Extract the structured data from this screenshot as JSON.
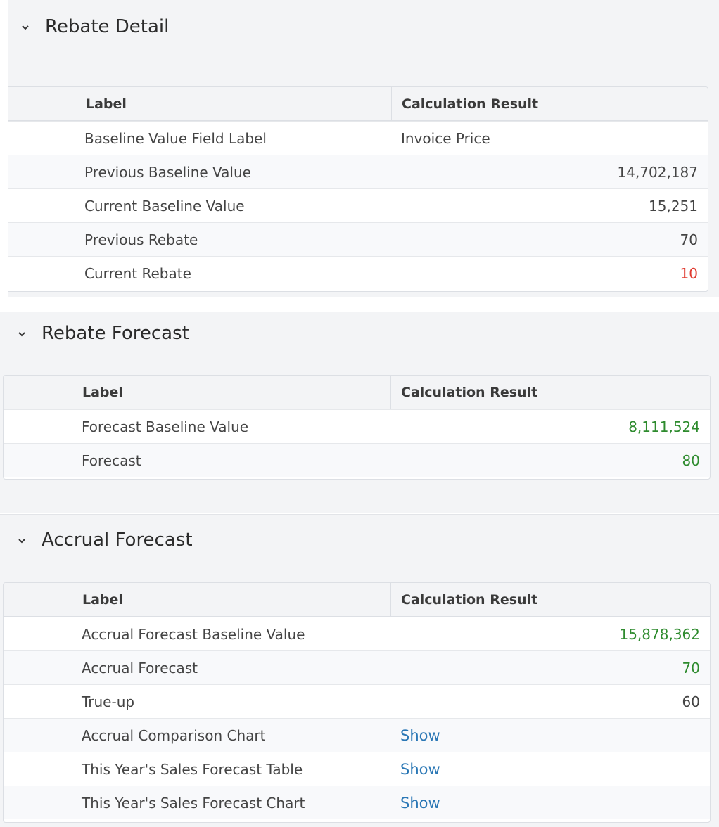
{
  "colors": {
    "green": "#2e8b2e",
    "red": "#e03a2f",
    "link": "#2a77b5"
  },
  "sections": [
    {
      "title": "Rebate Detail",
      "icon": "chevron-down-icon",
      "columns": [
        "Label",
        "Calculation Result"
      ],
      "rows": [
        {
          "label": "Baseline Value Field Label",
          "value": "Invoice Price"
        },
        {
          "label": "Previous Baseline Value",
          "value": "14,702,187"
        },
        {
          "label": "Current Baseline Value",
          "value": "15,251"
        },
        {
          "label": "Previous Rebate",
          "value": "70"
        },
        {
          "label": "Current Rebate",
          "value": "10"
        }
      ]
    },
    {
      "title": "Rebate Forecast",
      "icon": "chevron-down-icon",
      "columns": [
        "Label",
        "Calculation Result"
      ],
      "rows": [
        {
          "label": "Forecast Baseline Value",
          "value": "8,111,524"
        },
        {
          "label": "Forecast",
          "value": "80"
        }
      ]
    },
    {
      "title": "Accrual Forecast",
      "icon": "chevron-down-icon",
      "columns": [
        "Label",
        "Calculation Result"
      ],
      "rows": [
        {
          "label": "Accrual Forecast Baseline Value",
          "value": "15,878,362"
        },
        {
          "label": "Accrual Forecast",
          "value": "70"
        },
        {
          "label": "True-up",
          "value": "60"
        },
        {
          "label": "Accrual Comparison Chart",
          "value": "Show"
        },
        {
          "label": "This Year's Sales Forecast Table",
          "value": "Show"
        },
        {
          "label": "This Year's Sales Forecast Chart",
          "value": "Show"
        }
      ]
    }
  ]
}
